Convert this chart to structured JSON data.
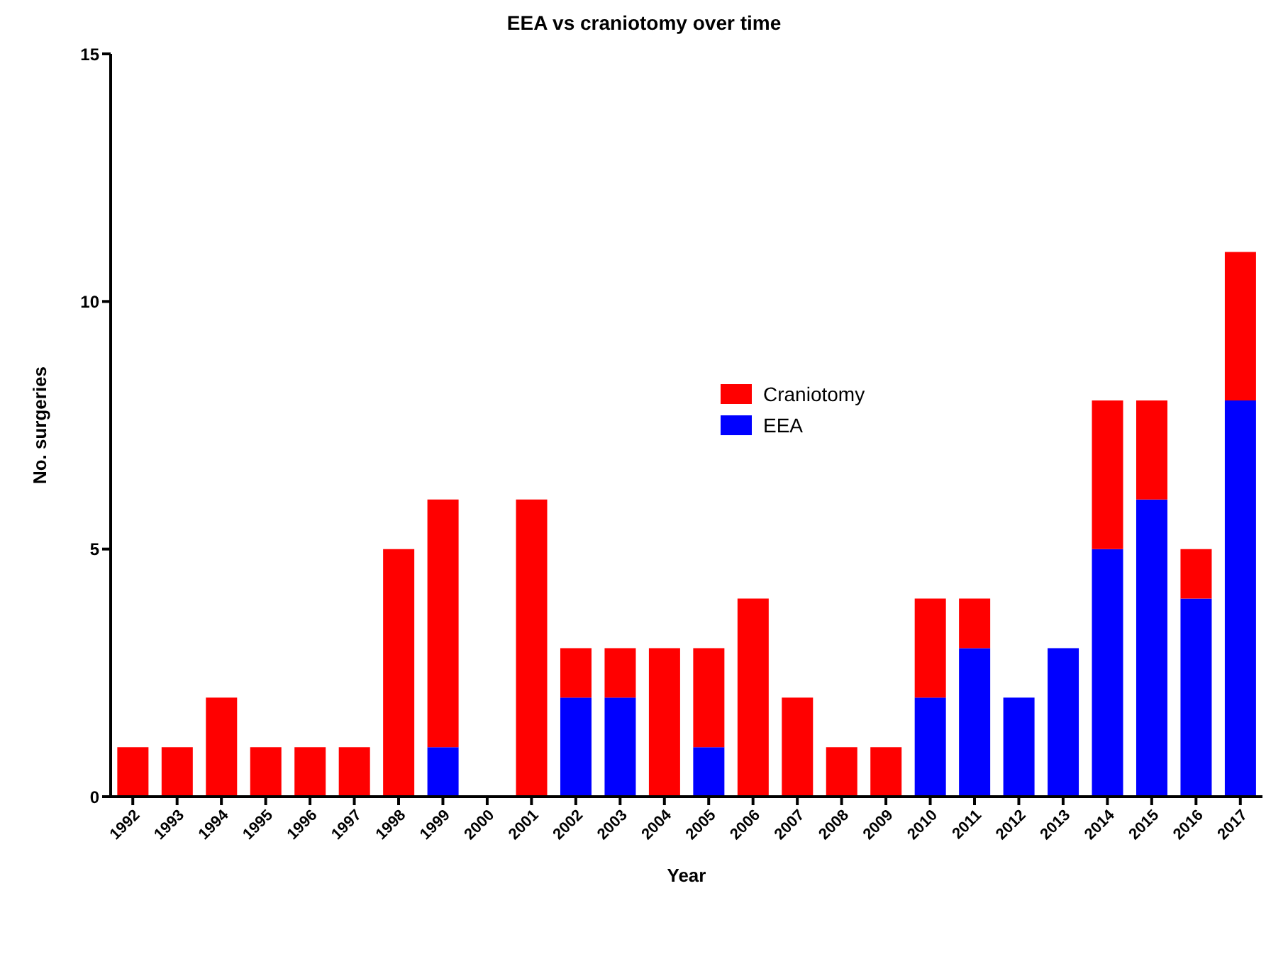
{
  "chart_data": {
    "type": "bar",
    "title": "EEA vs craniotomy over time",
    "xlabel": "Year",
    "ylabel": "No. surgeries",
    "categories": [
      "1992",
      "1993",
      "1994",
      "1995",
      "1996",
      "1997",
      "1998",
      "1999",
      "2000",
      "2001",
      "2002",
      "2003",
      "2004",
      "2005",
      "2006",
      "2007",
      "2008",
      "2009",
      "2010",
      "2011",
      "2012",
      "2013",
      "2014",
      "2015",
      "2016",
      "2017"
    ],
    "stacked": true,
    "series": [
      {
        "name": "EEA",
        "color": "#0000ff",
        "values": [
          0,
          0,
          0,
          0,
          0,
          0,
          0,
          1,
          0,
          0,
          2,
          2,
          0,
          1,
          0,
          0,
          0,
          0,
          2,
          3,
          2,
          3,
          5,
          6,
          4,
          8
        ]
      },
      {
        "name": "Craniotomy",
        "color": "#ff0000",
        "values": [
          1,
          1,
          2,
          1,
          1,
          1,
          5,
          5,
          0,
          6,
          1,
          1,
          3,
          2,
          4,
          2,
          1,
          1,
          2,
          1,
          0,
          0,
          3,
          2,
          1,
          3
        ]
      }
    ],
    "ylim": [
      0,
      15
    ],
    "yticks": [
      0,
      5,
      10,
      15
    ],
    "grid": false,
    "legend": "top"
  }
}
